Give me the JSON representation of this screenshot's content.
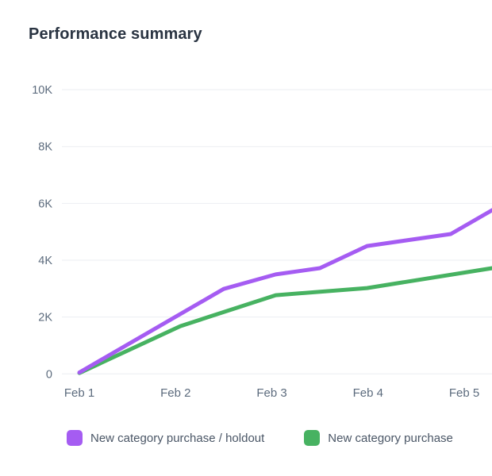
{
  "header": {
    "title": "Performance summary"
  },
  "chart_data": {
    "type": "line",
    "title": "Performance summary",
    "x_axis": {
      "tick_labels": [
        "Feb 1",
        "Feb 2",
        "Feb 3",
        "Feb 4",
        "Feb 5"
      ],
      "tick_positions_days": [
        0,
        1,
        2,
        3,
        4
      ],
      "range_days": [
        -0.18,
        4.29
      ]
    },
    "y_axis": {
      "tick_labels": [
        "0",
        "2K",
        "4K",
        "6K",
        "8K",
        "10K"
      ],
      "tick_values": [
        0,
        2000,
        4000,
        6000,
        8000,
        10000
      ],
      "range": [
        0,
        10000
      ]
    },
    "grid": "horizontal-only",
    "legend_position": "bottom-left",
    "series_clipped_at_right_edge": true,
    "colors": {
      "axis_text": "#5c6b7d",
      "gridline": "#ebeef2",
      "title_text": "#2a3442",
      "legend_text": "#4a5666",
      "background": "#ffffff"
    },
    "series": [
      {
        "name": "New category purchase / holdout",
        "color": "#a55cf2",
        "points_day_value": [
          [
            0,
            50
          ],
          [
            1.5,
            2990
          ],
          [
            2.04,
            3500
          ],
          [
            2.5,
            3720
          ],
          [
            2.99,
            4500
          ],
          [
            3.86,
            4920
          ],
          [
            4.29,
            5760
          ]
        ]
      },
      {
        "name": "New category purchase",
        "color": "#47b261",
        "points_day_value": [
          [
            0,
            30
          ],
          [
            1.05,
            1680
          ],
          [
            2.04,
            2770
          ],
          [
            2.99,
            3020
          ],
          [
            4.29,
            3720
          ]
        ]
      }
    ]
  }
}
